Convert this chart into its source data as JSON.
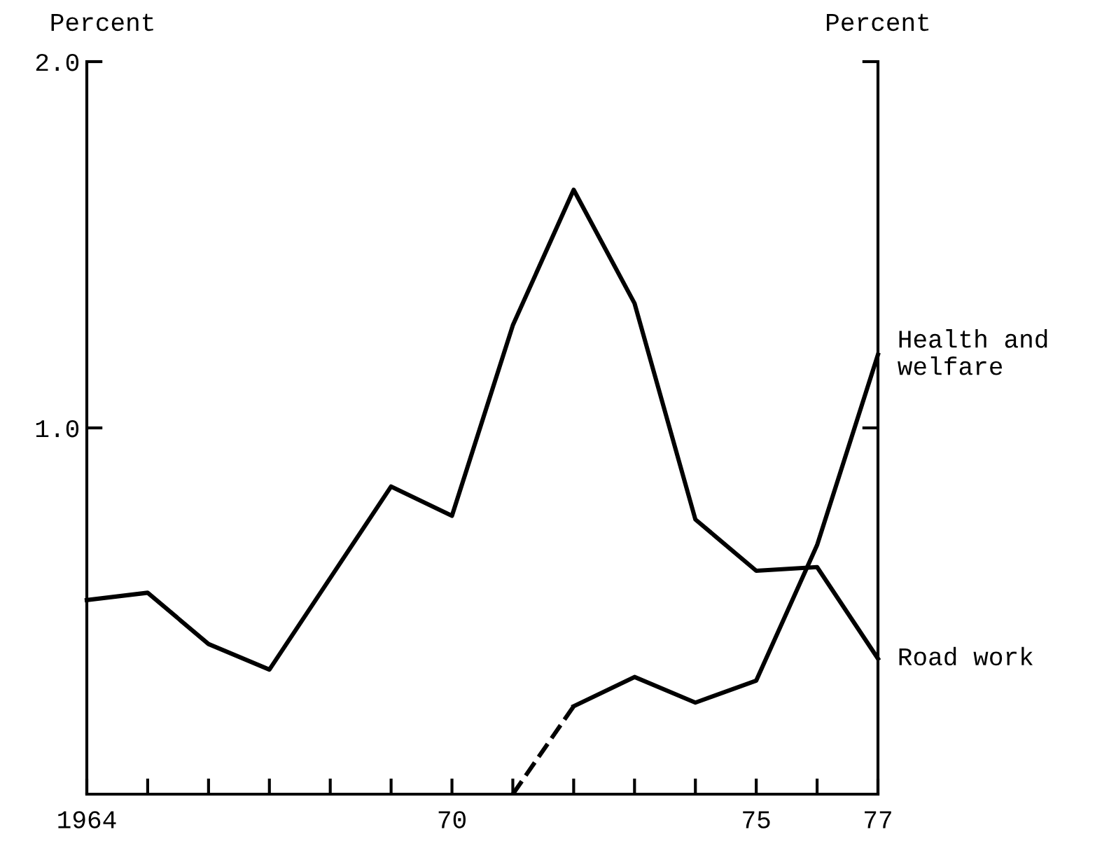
{
  "chart_data": {
    "type": "line",
    "ylabel": "Percent",
    "y2label": "Percent",
    "x": [
      1964,
      1965,
      1966,
      1967,
      1968,
      1969,
      1970,
      1971,
      1972,
      1973,
      1974,
      1975,
      1976,
      1977
    ],
    "series": [
      {
        "name": "Road work",
        "color": "#000000",
        "line_style": "solid",
        "values": [
          0.53,
          0.55,
          0.41,
          0.34,
          0.59,
          0.84,
          0.76,
          1.28,
          1.65,
          1.34,
          0.75,
          0.61,
          0.62,
          0.37
        ]
      },
      {
        "color": "#000000",
        "line_style": "dashed",
        "values": [
          null,
          null,
          null,
          null,
          null,
          null,
          null,
          0,
          0.24,
          null,
          null,
          null,
          null,
          null
        ]
      },
      {
        "name": "Health and welfare",
        "color": "#000000",
        "line_style": "solid",
        "values": [
          null,
          null,
          null,
          null,
          null,
          null,
          null,
          null,
          0.24,
          0.32,
          0.25,
          0.31,
          0.68,
          1.2
        ]
      }
    ],
    "xlim": [
      1964,
      1977
    ],
    "xticks": [
      {
        "value": 1964,
        "label": "1964"
      },
      {
        "value": 1965,
        "label": null
      },
      {
        "value": 1966,
        "label": null
      },
      {
        "value": 1967,
        "label": null
      },
      {
        "value": 1968,
        "label": null
      },
      {
        "value": 1969,
        "label": null
      },
      {
        "value": 1970,
        "label": "70"
      },
      {
        "value": 1971,
        "label": null
      },
      {
        "value": 1972,
        "label": null
      },
      {
        "value": 1973,
        "label": null
      },
      {
        "value": 1974,
        "label": null
      },
      {
        "value": 1975,
        "label": "75"
      },
      {
        "value": 1976,
        "label": null
      },
      {
        "value": 1977,
        "label": "77"
      }
    ],
    "ylim": [
      0,
      2.0
    ],
    "yticks": [
      {
        "value": 1.0,
        "label": "1.0"
      },
      {
        "value": 2.0,
        "label": "2.0"
      }
    ],
    "grid": false,
    "legend": false,
    "marker": "none"
  }
}
